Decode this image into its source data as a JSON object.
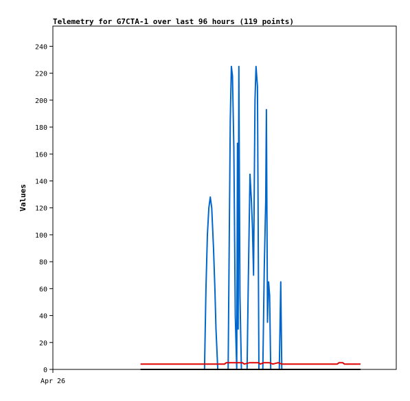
{
  "chart_data": {
    "type": "line",
    "title": "Telemetry for G7CTA-1 over last 96 hours (119 points)",
    "xlabel": "",
    "ylabel": "Values",
    "ylim": [
      0,
      255
    ],
    "yticks": [
      "0",
      "20",
      "40",
      "60",
      "80",
      "100",
      "120",
      "140",
      "160",
      "180",
      "200",
      "220",
      "240"
    ],
    "xlim": [
      0,
      96
    ],
    "xticks": [
      {
        "x": 0,
        "label": "Apr 26"
      }
    ],
    "grid": false,
    "legend": "none",
    "series": [
      {
        "color": "#0066cc",
        "points": [
          [
            24.5,
            0
          ],
          [
            40.7,
            0
          ],
          [
            42.4,
            0
          ],
          [
            42.8,
            60
          ],
          [
            43.2,
            100
          ],
          [
            43.6,
            120
          ],
          [
            44.0,
            128
          ],
          [
            44.4,
            120
          ],
          [
            44.9,
            90
          ],
          [
            45.3,
            60
          ],
          [
            45.6,
            30
          ],
          [
            46.1,
            0
          ],
          [
            49.0,
            0
          ],
          [
            49.6,
            185
          ],
          [
            49.9,
            225
          ],
          [
            50.2,
            218
          ],
          [
            50.6,
            165
          ],
          [
            51.0,
            40
          ],
          [
            51.4,
            0
          ],
          [
            51.6,
            168
          ],
          [
            51.8,
            30
          ],
          [
            52.0,
            225
          ],
          [
            52.3,
            55
          ],
          [
            52.7,
            0
          ],
          [
            53.2,
            0
          ],
          [
            54.0,
            0
          ],
          [
            54.3,
            0
          ],
          [
            54.6,
            60
          ],
          [
            55.1,
            145
          ],
          [
            55.5,
            125
          ],
          [
            55.8,
            105
          ],
          [
            56.1,
            70
          ],
          [
            56.5,
            200
          ],
          [
            56.8,
            225
          ],
          [
            57.2,
            210
          ],
          [
            57.6,
            0
          ],
          [
            58.7,
            0
          ],
          [
            59.1,
            75
          ],
          [
            59.5,
            125
          ],
          [
            59.7,
            193
          ],
          [
            60.0,
            35
          ],
          [
            60.3,
            65
          ],
          [
            60.6,
            55
          ],
          [
            60.9,
            0
          ],
          [
            63.3,
            0
          ],
          [
            63.7,
            65
          ],
          [
            64.0,
            0
          ],
          [
            86.0,
            0
          ]
        ]
      },
      {
        "color": "#dd0000",
        "points": [
          [
            24.5,
            4
          ],
          [
            48.0,
            4
          ],
          [
            48.5,
            5
          ],
          [
            53.0,
            5
          ],
          [
            53.5,
            4
          ],
          [
            55.0,
            5
          ],
          [
            57.5,
            5
          ],
          [
            58.0,
            4
          ],
          [
            59.0,
            5
          ],
          [
            60.5,
            5
          ],
          [
            61.5,
            4
          ],
          [
            63.0,
            5
          ],
          [
            64.0,
            4
          ],
          [
            79.5,
            4
          ],
          [
            80.0,
            5
          ],
          [
            81.0,
            5
          ],
          [
            81.5,
            4
          ],
          [
            86.0,
            4
          ]
        ]
      },
      {
        "color": "#000000",
        "points": [
          [
            24.5,
            0
          ],
          [
            86.0,
            0
          ]
        ]
      }
    ]
  }
}
